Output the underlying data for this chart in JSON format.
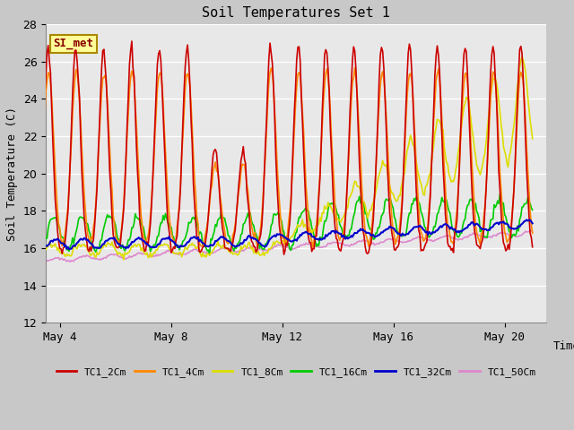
{
  "title": "Soil Temperatures Set 1",
  "xlabel": "Time",
  "ylabel": "Soil Temperature (C)",
  "ylim": [
    12,
    28
  ],
  "yticks": [
    12,
    14,
    16,
    18,
    20,
    22,
    24,
    26,
    28
  ],
  "plot_bg_color": "#e8e8e8",
  "fig_bg_color": "#c8c8c8",
  "series": {
    "TC1_2Cm": {
      "color": "#cc0000",
      "lw": 1.2
    },
    "TC1_4Cm": {
      "color": "#ff8800",
      "lw": 1.2
    },
    "TC1_8Cm": {
      "color": "#dddd00",
      "lw": 1.2
    },
    "TC1_16Cm": {
      "color": "#00cc00",
      "lw": 1.2
    },
    "TC1_32Cm": {
      "color": "#0000cc",
      "lw": 1.5
    },
    "TC1_50Cm": {
      "color": "#dd88cc",
      "lw": 1.2
    }
  },
  "xtick_labels": [
    "May 4",
    "May 8",
    "May 12",
    "May 16",
    "May 20"
  ],
  "xtick_positions": [
    4,
    8,
    12,
    16,
    20
  ],
  "grid_color": "#ffffff",
  "annotation_box_facecolor": "#ffff99",
  "annotation_box_edgecolor": "#aa8800",
  "annotation_text": "SI_met",
  "annotation_text_color": "#880000",
  "xlim": [
    3.5,
    21.5
  ]
}
